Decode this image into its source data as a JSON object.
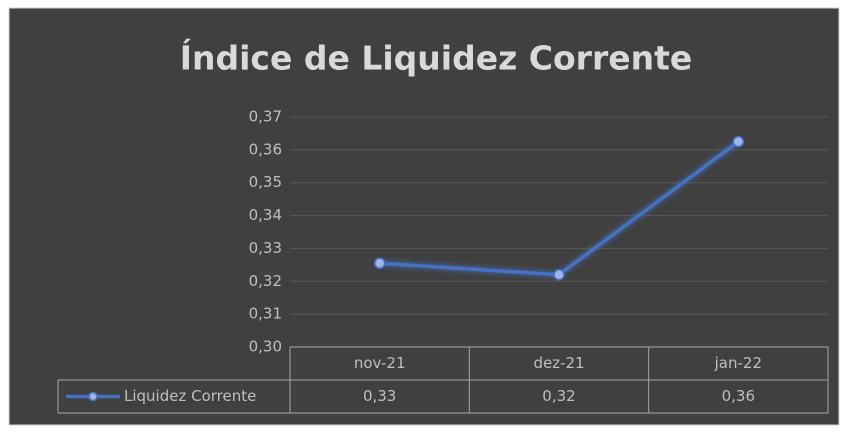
{
  "chart_data": {
    "type": "line",
    "title": "Índice de Liquidez Corrente",
    "categories": [
      "nov-21",
      "dez-21",
      "jan-22"
    ],
    "series": [
      {
        "name": "Liquidez Corrente",
        "color": "#4472c4",
        "values": [
          0.3255,
          0.322,
          0.3625
        ],
        "value_labels": [
          "0,33",
          "0,32",
          "0,36"
        ]
      }
    ],
    "ylim": [
      0.3,
      0.37
    ],
    "yticks": [
      {
        "value": 0.3,
        "label": "0,30"
      },
      {
        "value": 0.31,
        "label": "0,31"
      },
      {
        "value": 0.32,
        "label": "0,32"
      },
      {
        "value": 0.33,
        "label": "0,33"
      },
      {
        "value": 0.34,
        "label": "0,34"
      },
      {
        "value": 0.35,
        "label": "0,35"
      },
      {
        "value": 0.36,
        "label": "0,36"
      },
      {
        "value": 0.37,
        "label": "0,37"
      }
    ],
    "grid": true,
    "data_table": true
  }
}
